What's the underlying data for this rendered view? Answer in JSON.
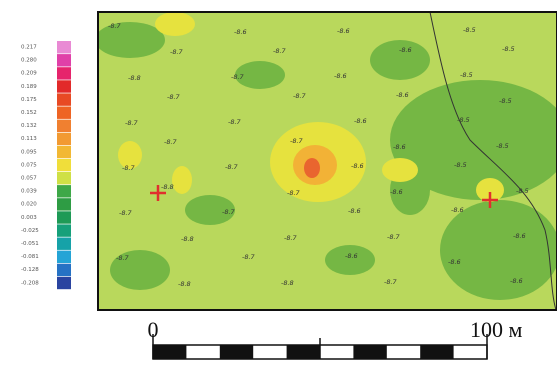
{
  "legend": {
    "labels": [
      "0.217",
      "0.280",
      "0.209",
      "0.189",
      "0.175",
      "0.152",
      "0.132",
      "0.113",
      "0.095",
      "0.075",
      "0.057",
      "0.039",
      "0.020",
      "0.003",
      "-0.025",
      "-0.051",
      "-0.081",
      "-0.128",
      "-0.208"
    ]
  },
  "map": {
    "contour_labels": [
      "-8.7",
      "-8.6",
      "-8.6",
      "-8.5",
      "-8.7",
      "-8.7",
      "-8.6",
      "-8.5",
      "-8.8",
      "-8.7",
      "-8.6",
      "-8.5",
      "-8.7",
      "-8.7",
      "-8.6",
      "-8.5",
      "-8.7",
      "-8.7",
      "-8.6",
      "-8.5",
      "-8.7",
      "-8.7",
      "-8.6",
      "-8.5",
      "-8.7",
      "-8.7",
      "-8.6",
      "-8.5",
      "-8.8",
      "-8.7",
      "-8.6",
      "-8.5",
      "-8.7",
      "-8.7",
      "-8.6",
      "-8.6",
      "-8.8",
      "-8.7",
      "-8.7",
      "-8.6",
      "-8.7",
      "-8.7",
      "-8.6",
      "-8.6",
      "-8.8",
      "-8.8",
      "-8.7",
      "-8.6"
    ]
  },
  "scale_bar": {
    "start_label": "0",
    "end_label": "100 м"
  }
}
